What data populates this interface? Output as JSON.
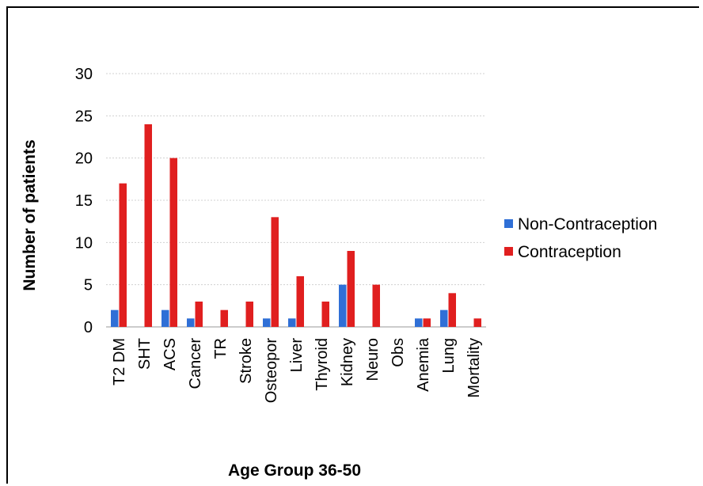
{
  "chart_data": {
    "type": "bar",
    "xlabel": "Age Group 36-50",
    "ylabel": "Number of patients",
    "ylim": [
      0,
      30
    ],
    "yticks": [
      0,
      5,
      10,
      15,
      20,
      25,
      30
    ],
    "grid": true,
    "legend_position": "right",
    "categories": [
      "T2 DM",
      "SHT",
      "ACS",
      "Cancer",
      "TR",
      "Stroke",
      "Osteopor",
      "Liver",
      "Thyroid",
      "Kidney",
      "Neuro",
      "Obs",
      "Anemia",
      "Lung",
      "Mortality"
    ],
    "series": [
      {
        "name": "Non-Contraception",
        "color": "#2f6fd6",
        "values": [
          2,
          0,
          2,
          1,
          0,
          0,
          1,
          1,
          0,
          5,
          0,
          0,
          1,
          2,
          0
        ]
      },
      {
        "name": "Contraception",
        "color": "#e01f1f",
        "values": [
          17,
          24,
          20,
          3,
          2,
          3,
          13,
          6,
          3,
          9,
          5,
          0,
          1,
          4,
          1
        ]
      }
    ]
  }
}
